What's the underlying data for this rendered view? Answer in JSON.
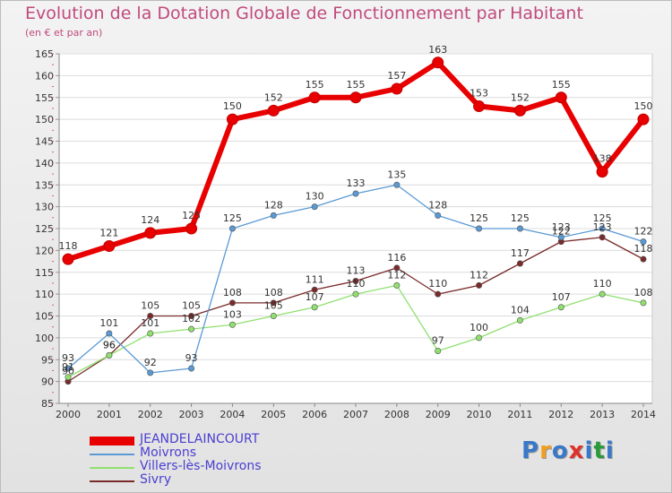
{
  "title": "Evolution de la Dotation Globale de Fonctionnement par Habitant",
  "subtitle": "(en € et par an)",
  "logo": {
    "text": "Proxiti",
    "colors": [
      "#3a78c8",
      "#f0a020",
      "#3a78c8",
      "#e0302a",
      "#3a78c8",
      "#2a9a3a",
      "#3a78c8"
    ]
  },
  "chart_data": {
    "type": "line",
    "title": "Evolution de la Dotation Globale de Fonctionnement par Habitant",
    "ylabel": "(en € et par an)",
    "xlabel": "",
    "x": [
      "2000",
      "2001",
      "2002",
      "2003",
      "2004",
      "2005",
      "2006",
      "2007",
      "2008",
      "2009",
      "2010",
      "2011",
      "2012",
      "2013",
      "2014"
    ],
    "ylim": [
      85,
      165
    ],
    "yticks": [
      "85",
      "90",
      "95",
      "100",
      "105",
      "110",
      "115",
      "120",
      "125",
      "130",
      "135",
      "140",
      "145",
      "150",
      "155",
      "160",
      "165"
    ],
    "grid": "horizontal",
    "legend_position": "bottom-left",
    "series": [
      {
        "name": "JEANDELAINCOURT",
        "color": "#e80000",
        "values": [
          118,
          121,
          124,
          125,
          150,
          152,
          155,
          155,
          157,
          163,
          153,
          152,
          155,
          138,
          150
        ],
        "labels": [
          "118",
          "121",
          "124",
          "125",
          "150",
          "152",
          "155",
          "155",
          "157",
          "163",
          "153",
          "152",
          "155",
          "138",
          "150"
        ]
      },
      {
        "name": "Moivrons",
        "color": "#5a9ad4",
        "values": [
          93,
          101,
          92,
          93,
          125,
          128,
          130,
          133,
          135,
          128,
          125,
          125,
          123,
          125,
          122
        ],
        "labels": [
          "93",
          "101",
          "92",
          "93",
          "125",
          "128",
          "130",
          "133",
          "135",
          "128",
          "125",
          "125",
          "123",
          "125",
          "122"
        ]
      },
      {
        "name": "Villers-lès-Moivrons",
        "color": "#90e070",
        "values": [
          91,
          96,
          101,
          102,
          103,
          105,
          107,
          110,
          112,
          97,
          100,
          104,
          107,
          110,
          108
        ],
        "labels": [
          "91",
          "96",
          "101",
          "102",
          "103",
          "105",
          "107",
          "110",
          "112",
          "97",
          "100",
          "104",
          "107",
          "110",
          "108"
        ]
      },
      {
        "name": "Sivry",
        "color": "#7a2a2a",
        "values": [
          90,
          96,
          105,
          105,
          108,
          108,
          111,
          113,
          116,
          110,
          112,
          117,
          122,
          123,
          118
        ],
        "labels": [
          "90",
          "96",
          "105",
          "105",
          "108",
          "108",
          "111",
          "113",
          "116",
          "110",
          "112",
          "117",
          "122",
          "123",
          "118"
        ]
      }
    ]
  }
}
